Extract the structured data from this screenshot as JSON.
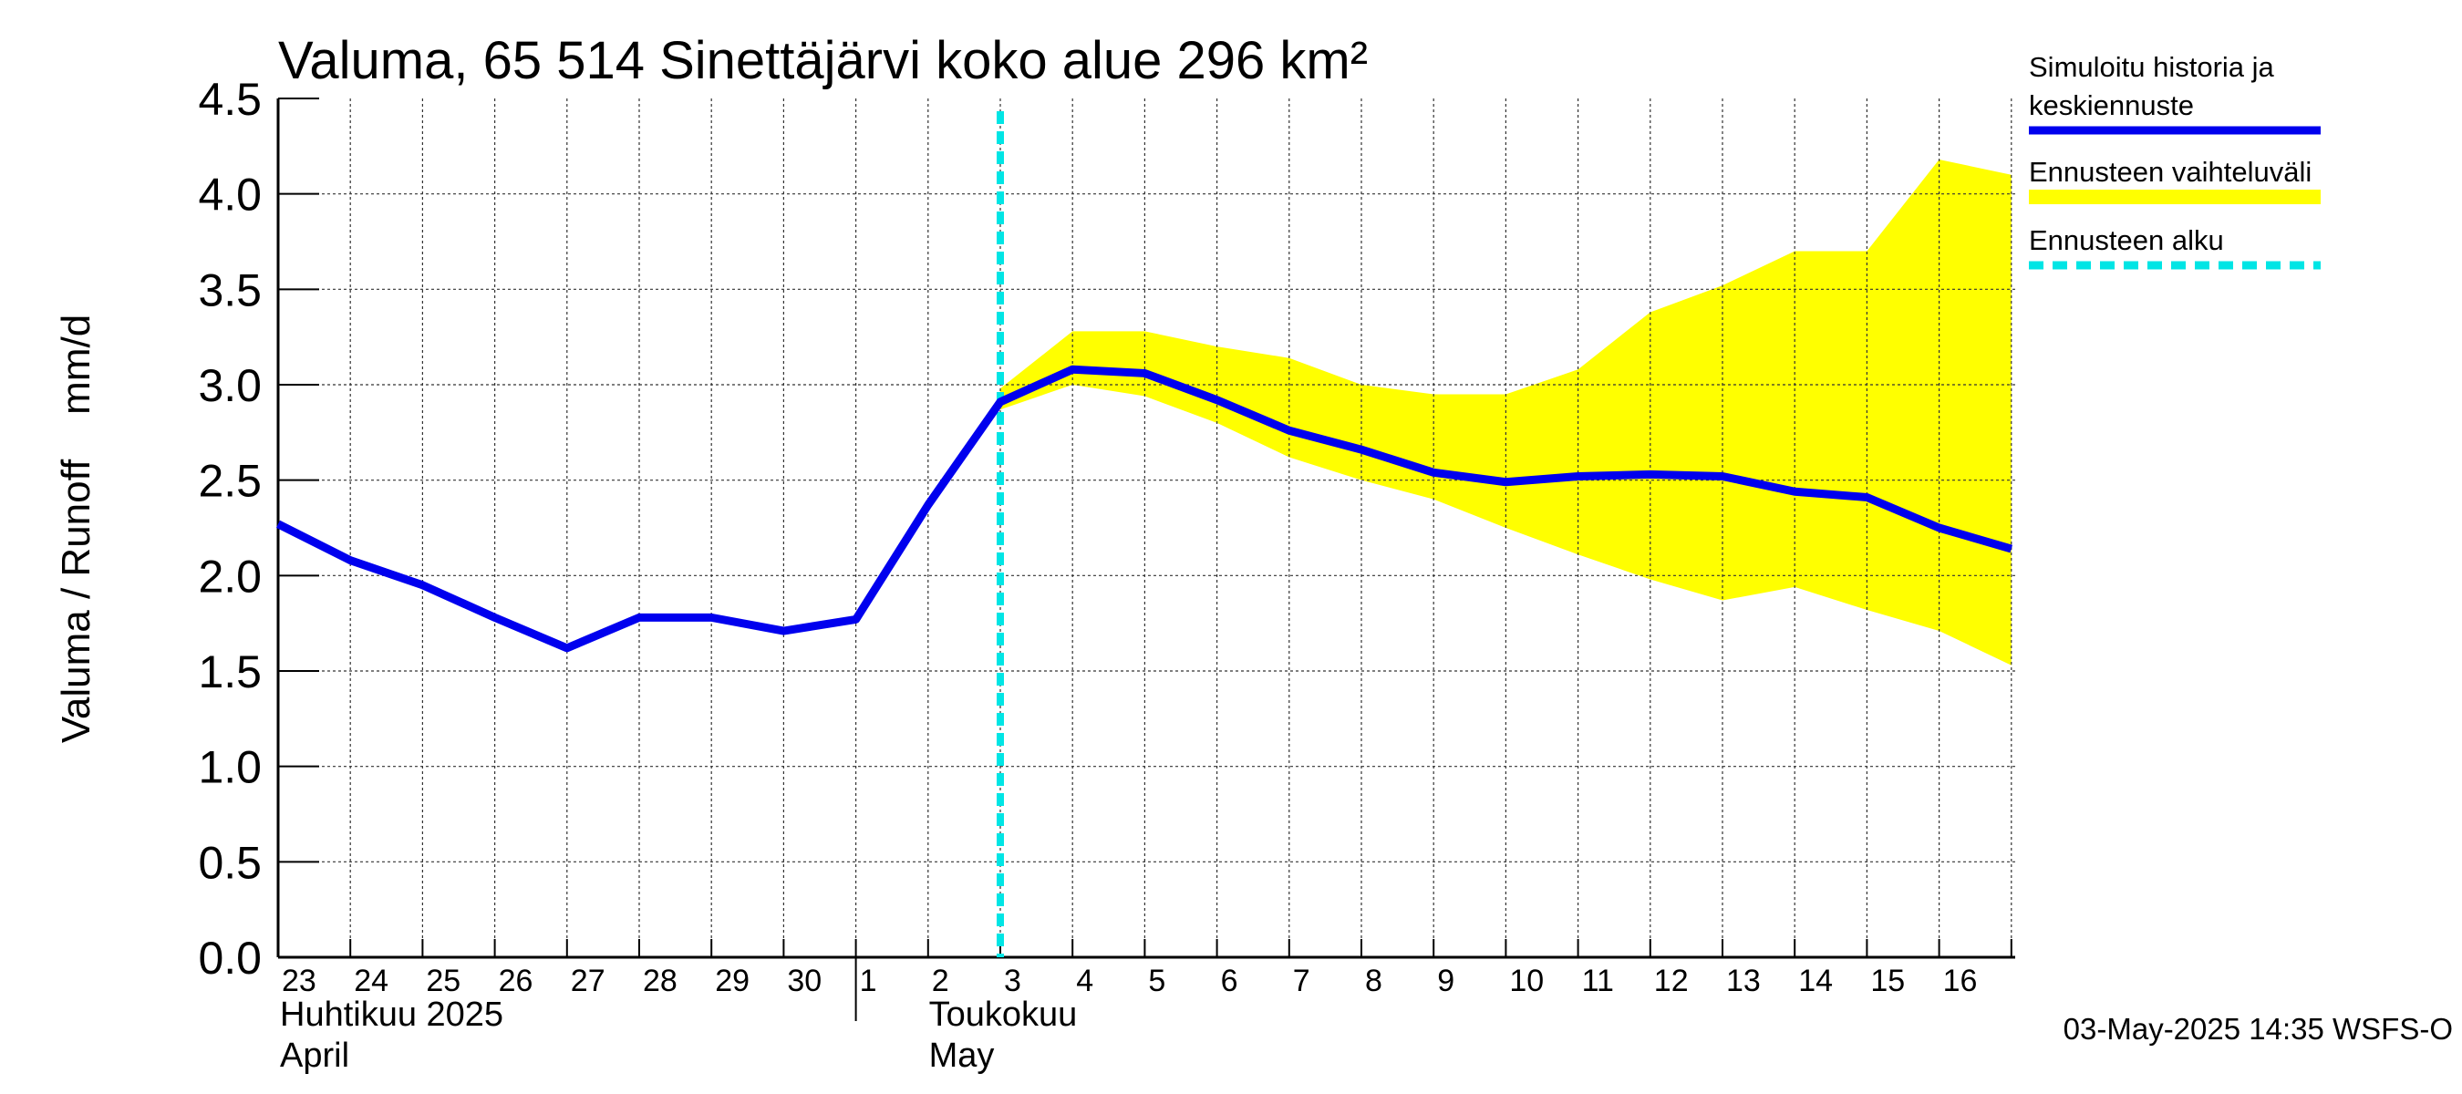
{
  "chart_data": {
    "type": "line",
    "title": "Valuma, 65 514 Sinettäjärvi koko alue 296 km²",
    "ylabel": "Valuma / Runoff    mm/d",
    "ylim": [
      0,
      4.5
    ],
    "yticks": [
      "0.0",
      "0.5",
      "1.0",
      "1.5",
      "2.0",
      "2.5",
      "3.0",
      "3.5",
      "4.0",
      "4.5"
    ],
    "xlabels": [
      "23",
      "24",
      "25",
      "26",
      "27",
      "28",
      "29",
      "30",
      "1",
      "2",
      "3",
      "4",
      "5",
      "6",
      "7",
      "8",
      "9",
      "10",
      "11",
      "12",
      "13",
      "14",
      "15",
      "16"
    ],
    "months": [
      {
        "line1": "Huhtikuu  2025",
        "line2": "April"
      },
      {
        "line1": "Toukokuu",
        "line2": "May"
      }
    ],
    "forecast_start": "2025-05-03",
    "series": [
      {
        "name": "Simuloitu historia ja keskiennuste",
        "color": "#0000ee",
        "x": [
          "2025-04-23",
          "2025-04-24",
          "2025-04-25",
          "2025-04-26",
          "2025-04-27",
          "2025-04-28",
          "2025-04-29",
          "2025-04-30",
          "2025-05-01",
          "2025-05-02",
          "2025-05-03",
          "2025-05-04",
          "2025-05-05",
          "2025-05-06",
          "2025-05-07",
          "2025-05-08",
          "2025-05-09",
          "2025-05-10",
          "2025-05-11",
          "2025-05-12",
          "2025-05-13",
          "2025-05-14",
          "2025-05-15",
          "2025-05-16",
          "2025-05-17"
        ],
        "values": [
          2.27,
          2.08,
          1.95,
          1.78,
          1.62,
          1.78,
          1.78,
          1.71,
          1.77,
          2.37,
          2.91,
          3.08,
          3.06,
          2.92,
          2.76,
          2.66,
          2.54,
          2.49,
          2.52,
          2.53,
          2.52,
          2.44,
          2.41,
          2.25,
          2.14
        ]
      },
      {
        "name": "Ennusteen vaihteluväli",
        "color": "#ffff00",
        "x": [
          "2025-05-03",
          "2025-05-04",
          "2025-05-05",
          "2025-05-06",
          "2025-05-07",
          "2025-05-08",
          "2025-05-09",
          "2025-05-10",
          "2025-05-11",
          "2025-05-12",
          "2025-05-13",
          "2025-05-14",
          "2025-05-15",
          "2025-05-16",
          "2025-05-17"
        ],
        "upper": [
          2.98,
          3.28,
          3.28,
          3.2,
          3.14,
          3.0,
          2.95,
          2.95,
          3.08,
          3.38,
          3.52,
          3.7,
          3.7,
          4.18,
          4.1
        ],
        "lower": [
          2.87,
          3.0,
          2.94,
          2.8,
          2.62,
          2.5,
          2.4,
          2.25,
          2.11,
          1.98,
          1.87,
          1.94,
          1.82,
          1.71,
          1.53
        ]
      },
      {
        "name": "Ennusteen alku",
        "color": "#00e5e5"
      }
    ],
    "grid": true,
    "legend_position": "right"
  },
  "footer": "03-May-2025 14:35 WSFS-O"
}
